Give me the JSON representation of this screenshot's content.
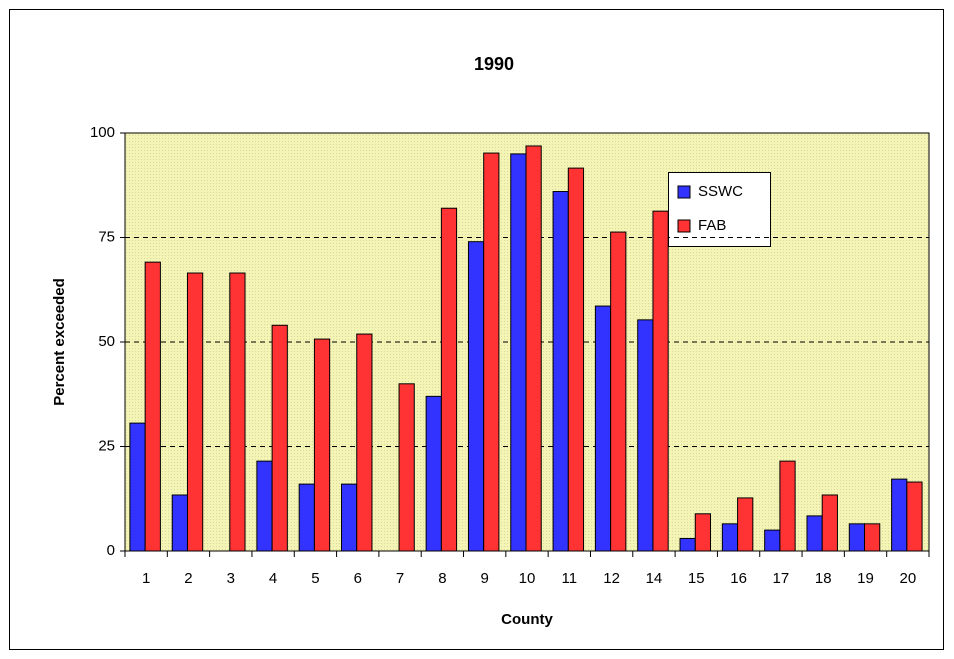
{
  "chart_data": {
    "type": "bar",
    "title": "1990",
    "xlabel": "County",
    "ylabel": "Percent exceeded",
    "categories": [
      "1",
      "2",
      "3",
      "4",
      "5",
      "6",
      "7",
      "8",
      "9",
      "10",
      "11",
      "12",
      "14",
      "15",
      "16",
      "17",
      "18",
      "19",
      "20"
    ],
    "series": [
      {
        "name": "SSWC",
        "color": "#3333ff",
        "values": [
          30.6,
          13.4,
          0,
          21.5,
          16,
          16,
          0,
          37,
          74,
          95,
          86,
          58.6,
          55.3,
          3,
          6.5,
          5,
          8.4,
          6.5,
          17.2
        ]
      },
      {
        "name": "FAB",
        "color": "#ff3333",
        "values": [
          69.1,
          66.5,
          66.5,
          54,
          50.7,
          51.9,
          40,
          82,
          95.2,
          96.9,
          91.6,
          76.3,
          81.3,
          8.9,
          12.7,
          21.5,
          13.4,
          6.5,
          16.5
        ]
      }
    ],
    "ylim": [
      0,
      100
    ],
    "yticks": [
      0,
      25,
      50,
      75,
      100
    ],
    "grid": true
  }
}
